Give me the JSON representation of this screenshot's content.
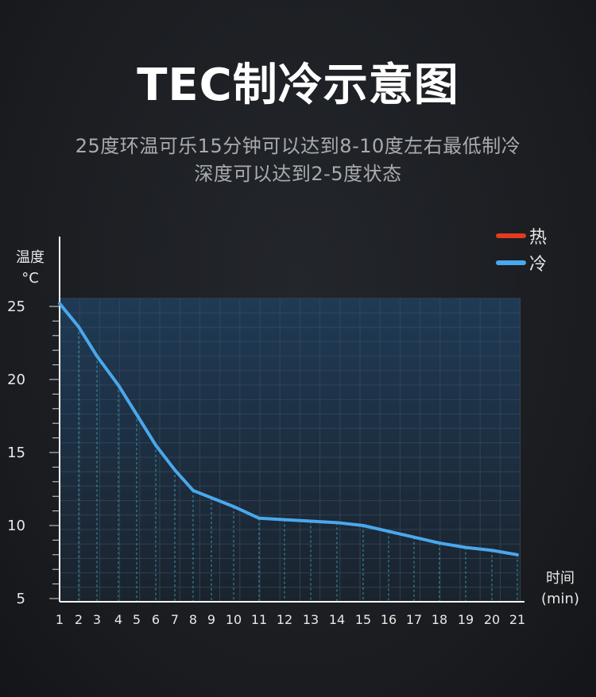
{
  "title": "TEC制冷示意图",
  "subtitle_line1": "25度环温可乐15分钟可以达到8-10度左右最低制冷",
  "subtitle_line2": "深度可以达到2-5度状态",
  "chart_data": {
    "type": "line",
    "ylabel": "温度\n°C",
    "xlabel": "时间\n(min)",
    "x_ticks": [
      "1",
      "2",
      "3",
      "4",
      "5",
      "6",
      "7",
      "8",
      "9",
      "10",
      "11",
      "12",
      "13",
      "14",
      "15",
      "16",
      "17",
      "18",
      "19",
      "20",
      "21"
    ],
    "y_ticks": [
      "25",
      "20",
      "15",
      "10",
      "5"
    ],
    "ylim": [
      5,
      25
    ],
    "grid": true,
    "legend_position": "top-right",
    "colors": {
      "hot": "#e23b1e",
      "cold": "#4aa8ec"
    },
    "series": [
      {
        "name": "热",
        "values": []
      },
      {
        "name": "冷",
        "values": [
          25.2,
          23.6,
          21.6,
          19.6,
          17.6,
          15.5,
          13.8,
          12.4,
          11.9,
          11.3,
          10.5,
          10.4,
          10.3,
          10.2,
          10.0,
          9.6,
          9.2,
          8.8,
          8.5,
          8.3,
          8.0
        ]
      }
    ]
  }
}
